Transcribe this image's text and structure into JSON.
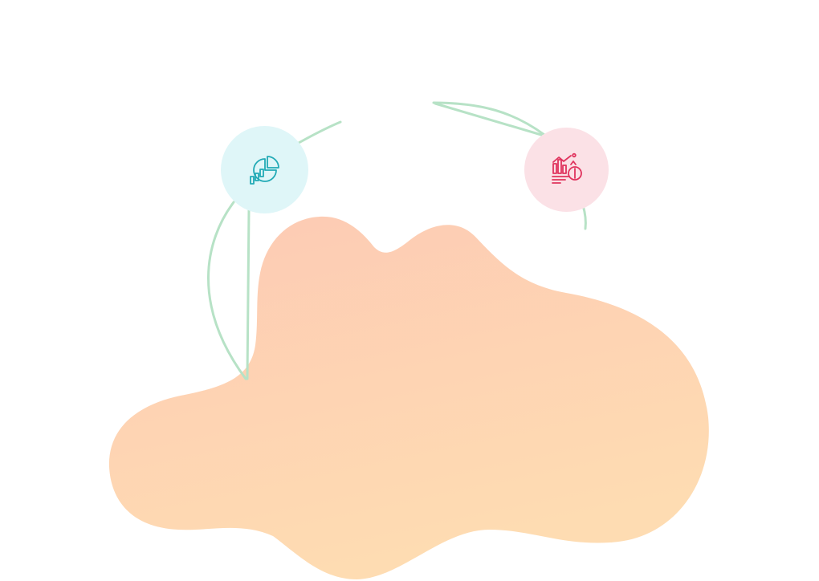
{
  "colors": {
    "blob_top": "#fdcab4",
    "blob_bottom": "#fedcb2",
    "connector": "#b7e2c6",
    "left_circle_bg": "#dff6f8",
    "left_icon_stroke": "#22aab6",
    "right_circle_bg": "#fbe1e6",
    "right_icon_stroke": "#e0345e"
  },
  "icons": {
    "left": "chart-analytics-icon",
    "right": "growth-finance-icon"
  }
}
